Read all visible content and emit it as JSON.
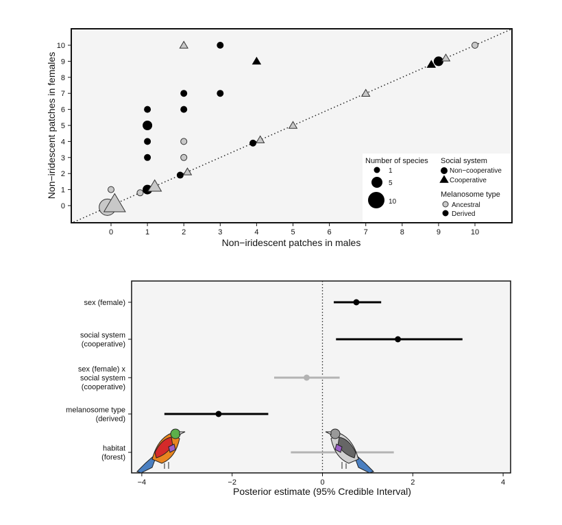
{
  "chart_data": [
    {
      "type": "scatter",
      "xlabel": "Non−iridescent patches in males",
      "ylabel": "Non−iridescent patches in females",
      "xlim": [
        -1.1,
        11
      ],
      "ylim": [
        -1,
        11.1
      ],
      "xticks": [
        0,
        1,
        2,
        3,
        4,
        5,
        6,
        7,
        8,
        9,
        10
      ],
      "yticks": [
        0,
        1,
        2,
        3,
        4,
        5,
        6,
        7,
        8,
        9,
        10
      ],
      "reference_line": "y = x (dotted)",
      "colors": {
        "ancestral": "#c8c8c8",
        "derived": "#000000",
        "panel_bg": "#f4f4f4"
      },
      "points": [
        {
          "x": 0,
          "y": 1,
          "n": 1,
          "social": "non-cooperative",
          "melanosome": "ancestral"
        },
        {
          "x": -0.1,
          "y": -0.1,
          "n": 10,
          "social": "non-cooperative",
          "melanosome": "ancestral"
        },
        {
          "x": 0.1,
          "y": 0.1,
          "n": 10,
          "social": "cooperative",
          "melanosome": "ancestral"
        },
        {
          "x": 0.8,
          "y": 0.8,
          "n": 1,
          "social": "non-cooperative",
          "melanosome": "ancestral"
        },
        {
          "x": 1,
          "y": 1,
          "n": 3,
          "social": "non-cooperative",
          "melanosome": "derived"
        },
        {
          "x": 1.2,
          "y": 1.2,
          "n": 4,
          "social": "cooperative",
          "melanosome": "ancestral"
        },
        {
          "x": 1,
          "y": 3,
          "n": 1,
          "social": "non-cooperative",
          "melanosome": "derived"
        },
        {
          "x": 1,
          "y": 4,
          "n": 1,
          "social": "non-cooperative",
          "melanosome": "derived"
        },
        {
          "x": 1,
          "y": 5,
          "n": 3,
          "social": "non-cooperative",
          "melanosome": "derived"
        },
        {
          "x": 1,
          "y": 6,
          "n": 1,
          "social": "non-cooperative",
          "melanosome": "derived"
        },
        {
          "x": 1.9,
          "y": 1.9,
          "n": 1,
          "social": "non-cooperative",
          "melanosome": "derived"
        },
        {
          "x": 2.1,
          "y": 2.1,
          "n": 1,
          "social": "cooperative",
          "melanosome": "ancestral"
        },
        {
          "x": 2,
          "y": 3,
          "n": 1,
          "social": "non-cooperative",
          "melanosome": "ancestral"
        },
        {
          "x": 2,
          "y": 4,
          "n": 1,
          "social": "non-cooperative",
          "melanosome": "ancestral"
        },
        {
          "x": 2,
          "y": 6,
          "n": 1,
          "social": "non-cooperative",
          "melanosome": "derived"
        },
        {
          "x": 2,
          "y": 7,
          "n": 1,
          "social": "non-cooperative",
          "melanosome": "derived"
        },
        {
          "x": 2,
          "y": 10,
          "n": 1,
          "social": "cooperative",
          "melanosome": "ancestral"
        },
        {
          "x": 3,
          "y": 7,
          "n": 1,
          "social": "non-cooperative",
          "melanosome": "derived"
        },
        {
          "x": 3,
          "y": 10,
          "n": 1,
          "social": "non-cooperative",
          "melanosome": "derived"
        },
        {
          "x": 3.9,
          "y": 3.9,
          "n": 1,
          "social": "non-cooperative",
          "melanosome": "derived"
        },
        {
          "x": 4.1,
          "y": 4.1,
          "n": 1,
          "social": "cooperative",
          "melanosome": "ancestral"
        },
        {
          "x": 4,
          "y": 9,
          "n": 1,
          "social": "cooperative",
          "melanosome": "derived"
        },
        {
          "x": 5,
          "y": 5,
          "n": 1,
          "social": "cooperative",
          "melanosome": "ancestral"
        },
        {
          "x": 7,
          "y": 7,
          "n": 1,
          "social": "cooperative",
          "melanosome": "ancestral"
        },
        {
          "x": 8.8,
          "y": 8.8,
          "n": 1,
          "social": "cooperative",
          "melanosome": "derived"
        },
        {
          "x": 9,
          "y": 9,
          "n": 3,
          "social": "non-cooperative",
          "melanosome": "derived"
        },
        {
          "x": 9.2,
          "y": 9.2,
          "n": 1,
          "social": "cooperative",
          "melanosome": "ancestral"
        },
        {
          "x": 10,
          "y": 10,
          "n": 1,
          "social": "non-cooperative",
          "melanosome": "ancestral"
        }
      ],
      "legend": {
        "size_title": "Number of species",
        "sizes": [
          "1",
          "5",
          "10"
        ],
        "social_title": "Social system",
        "social": [
          "Non−cooperative",
          "Cooperative"
        ],
        "melanosome_title": "Melanosome type",
        "melanosome": [
          "Ancestral",
          "Derived"
        ],
        "placement": "bottom-right"
      }
    },
    {
      "type": "interval",
      "xlabel": "Posterior estimate (95% Credible Interval)",
      "xlim": [
        -4.2,
        4.2
      ],
      "xticks": [
        -4,
        -2,
        0,
        2,
        4
      ],
      "xtick_labels": [
        "−4",
        "−2",
        "0",
        "2",
        "4"
      ],
      "reference_line": "x = 0 (dotted)",
      "colors": {
        "significant": "#000000",
        "not_significant": "#b3b3b3"
      },
      "rows": [
        {
          "label": [
            "sex (female)"
          ],
          "estimate": 0.75,
          "lower": 0.25,
          "upper": 1.3,
          "significant": true
        },
        {
          "label": [
            "social system",
            "(cooperative)"
          ],
          "estimate": 1.67,
          "lower": 0.3,
          "upper": 3.1,
          "significant": true
        },
        {
          "label": [
            "sex (female) x",
            "social system",
            "(cooperative)"
          ],
          "estimate": -0.35,
          "lower": -1.07,
          "upper": 0.38,
          "significant": false
        },
        {
          "label": [
            "melanosome type",
            "(derived)"
          ],
          "estimate": -2.3,
          "lower": -3.5,
          "upper": -1.2,
          "significant": true
        },
        {
          "label": [
            "habitat",
            "(forest)"
          ],
          "estimate": 0.45,
          "lower": -0.7,
          "upper": 1.58,
          "significant": false
        }
      ]
    }
  ]
}
